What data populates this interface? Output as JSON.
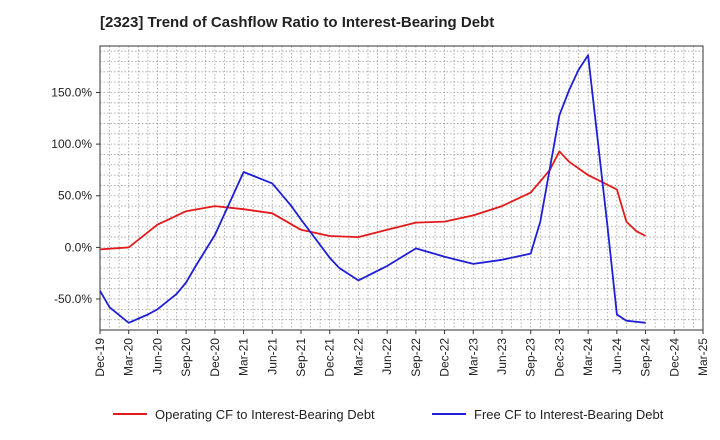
{
  "chart_data": {
    "type": "line",
    "title": "[2323]  Trend of Cashflow Ratio to Interest-Bearing Debt",
    "xlabel": "",
    "ylabel": "",
    "x": [
      "Dec-19",
      "Mar-20",
      "Jun-20",
      "Sep-20",
      "Dec-20",
      "Mar-21",
      "Jun-21",
      "Sep-21",
      "Dec-21",
      "Mar-22",
      "Jun-22",
      "Sep-22",
      "Dec-22",
      "Mar-23",
      "Jun-23",
      "Sep-23",
      "Dec-23",
      "Mar-24",
      "Jun-24",
      "Sep-24",
      "Dec-24",
      "Mar-25"
    ],
    "ylim": [
      -80,
      195
    ],
    "y_ticks": [
      -50,
      0,
      50,
      100,
      150
    ],
    "y_tick_labels": [
      "-50.0%",
      "0.0%",
      "50.0%",
      "100.0%",
      "150.0%"
    ],
    "grid": true,
    "legend_position": "bottom",
    "series": [
      {
        "name": "Operating CF to Interest-Bearing Debt",
        "color": "#e31a1c",
        "points": [
          [
            "Dec-19",
            -2
          ],
          [
            "Mar-20",
            0
          ],
          [
            "Jun-20",
            22
          ],
          [
            "Sep-20",
            35
          ],
          [
            "Dec-20",
            40
          ],
          [
            "Mar-21",
            37
          ],
          [
            "Jun-21",
            33
          ],
          [
            "Sep-21",
            17
          ],
          [
            "Dec-21",
            11
          ],
          [
            "Mar-22",
            10
          ],
          [
            "Jun-22",
            17
          ],
          [
            "Sep-22",
            24
          ],
          [
            "Dec-22",
            25
          ],
          [
            "Mar-23",
            31
          ],
          [
            "Jun-23",
            40
          ],
          [
            "Sep-23",
            53
          ],
          [
            "Nov-23",
            75
          ],
          [
            "Dec-23",
            93
          ],
          [
            "Jan-24",
            83
          ],
          [
            "Mar-24",
            70
          ],
          [
            "Jun-24",
            56
          ],
          [
            "Jul-24",
            25
          ],
          [
            "Aug-24",
            16
          ],
          [
            "Sep-24",
            11
          ]
        ]
      },
      {
        "name": "Free CF to Interest-Bearing Debt",
        "color": "#1f1fd6",
        "points": [
          [
            "Dec-19",
            -42
          ],
          [
            "Jan-20",
            -58
          ],
          [
            "Mar-20",
            -73
          ],
          [
            "May-20",
            -65
          ],
          [
            "Jun-20",
            -60
          ],
          [
            "Aug-20",
            -45
          ],
          [
            "Sep-20",
            -34
          ],
          [
            "Oct-20",
            -18
          ],
          [
            "Dec-20",
            12
          ],
          [
            "Mar-21",
            73
          ],
          [
            "Jun-21",
            62
          ],
          [
            "Aug-21",
            40
          ],
          [
            "Sep-21",
            27
          ],
          [
            "Dec-21",
            -10
          ],
          [
            "Jan-22",
            -20
          ],
          [
            "Mar-22",
            -32
          ],
          [
            "Jun-22",
            -18
          ],
          [
            "Sep-22",
            -1
          ],
          [
            "Dec-22",
            -9
          ],
          [
            "Mar-23",
            -16
          ],
          [
            "Jun-23",
            -12
          ],
          [
            "Sep-23",
            -6
          ],
          [
            "Oct-23",
            25
          ],
          [
            "Dec-23",
            128
          ],
          [
            "Jan-24",
            152
          ],
          [
            "Feb-24",
            172
          ],
          [
            "Mar-24",
            186
          ],
          [
            "May-24",
            22
          ],
          [
            "Jun-24",
            -65
          ],
          [
            "Jul-24",
            -71
          ],
          [
            "Sep-24",
            -73
          ]
        ]
      }
    ]
  }
}
